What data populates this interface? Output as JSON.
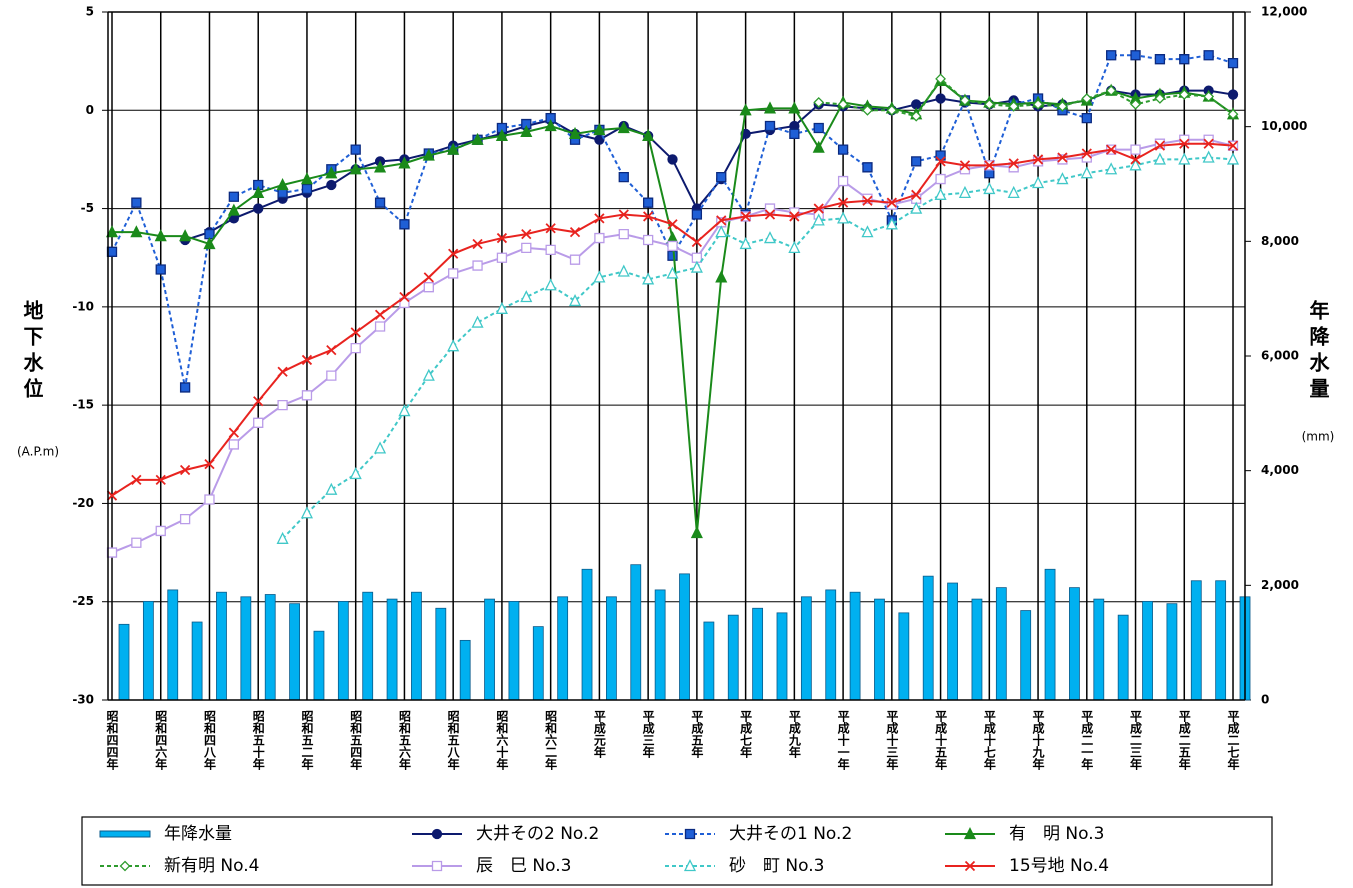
{
  "chart_data": {
    "type": "combo",
    "y_label": "地下水位",
    "y_unit": "(A.P.m)",
    "y2_label": "年降水量",
    "y2_unit": "(mm)",
    "categories": [
      "昭和四四年",
      null,
      "昭和四六年",
      null,
      "昭和四八年",
      null,
      "昭和五十年",
      null,
      "昭和五二年",
      null,
      "昭和五四年",
      null,
      "昭和五六年",
      null,
      "昭和五八年",
      null,
      "昭和六十年",
      null,
      "昭和六二年",
      null,
      "平成元年",
      null,
      "平成三年",
      null,
      "平成五年",
      null,
      "平成七年",
      null,
      "平成九年",
      null,
      "平成十一年",
      null,
      "平成十三年",
      null,
      "平成十五年",
      null,
      "平成十七年",
      null,
      "平成十九年",
      null,
      "平成二一年",
      null,
      "平成二三年",
      null,
      "平成二五年",
      null,
      "平成二七年"
    ],
    "ylim": [
      -30,
      5
    ],
    "yticks": [
      -30,
      -25,
      -20,
      -15,
      -10,
      -5,
      0,
      5
    ],
    "y2lim": [
      0,
      12000
    ],
    "y2ticks": [
      0,
      {
        "value": 2000,
        "label": "2,000"
      },
      {
        "value": 4000,
        "label": "4,000"
      },
      {
        "value": 6000,
        "label": "6,000"
      },
      {
        "value": 8000,
        "label": "8,000"
      },
      {
        "value": 10000,
        "label": "10,000"
      },
      {
        "value": 12000,
        "label": "12,000"
      }
    ],
    "grid": true,
    "series": [
      {
        "name": "年降水量",
        "kind": "bar",
        "axis": "y2",
        "color": "#00b0f0",
        "values": [
          1320,
          1720,
          1920,
          1360,
          1880,
          1800,
          1840,
          1680,
          1200,
          1720,
          1880,
          1760,
          1880,
          1600,
          1040,
          1760,
          1720,
          1280,
          1800,
          2280,
          1800,
          2360,
          1920,
          2200,
          1360,
          1480,
          1600,
          1520,
          1800,
          1920,
          1880,
          1760,
          1520,
          2160,
          2040,
          1760,
          1960,
          1560,
          2280,
          1960,
          1760,
          1480,
          1720,
          1680,
          2080,
          2080,
          1800
        ]
      },
      {
        "name": "大井その2 No.2",
        "kind": "line",
        "marker": "circle",
        "filled": true,
        "dashed": false,
        "color": "#0d1a6e",
        "values": [
          null,
          null,
          null,
          -6.6,
          -6.2,
          -5.5,
          -5.0,
          -4.5,
          -4.2,
          -3.8,
          -3.0,
          -2.6,
          -2.5,
          -2.2,
          -1.8,
          -1.5,
          -1.2,
          -0.8,
          -0.5,
          -1.2,
          -1.5,
          -0.8,
          -1.3,
          -2.5,
          -5.0,
          -3.5,
          -1.2,
          -1.0,
          -0.8,
          0.3,
          0.2,
          0.1,
          0,
          0.3,
          0.6,
          0.4,
          0.3,
          0.5,
          0.2,
          0.3,
          0.5,
          1.0,
          0.8,
          0.8,
          1.0,
          1.0,
          0.8
        ]
      },
      {
        "name": "大井その1 No.2",
        "kind": "line",
        "marker": "square",
        "filled": true,
        "dashed": true,
        "color": "#1f5fd6",
        "values": [
          -7.2,
          -4.7,
          -8.1,
          -14.1,
          -6.3,
          -4.4,
          -3.8,
          -4.2,
          -4.0,
          -3.0,
          -2.0,
          -4.7,
          -5.8,
          -2.2,
          -2.0,
          -1.5,
          -0.9,
          -0.7,
          -0.4,
          -1.5,
          -1.0,
          -3.4,
          -4.7,
          -7.4,
          -5.3,
          -3.4,
          -5.3,
          -0.8,
          -1.2,
          -0.9,
          -2.0,
          -2.9,
          -5.6,
          -2.6,
          -2.3,
          0.5,
          -3.2,
          0.3,
          0.6,
          0,
          -0.4,
          2.8,
          2.8,
          2.6,
          2.6,
          2.8,
          2.4
        ]
      },
      {
        "name": "有　明 No.3",
        "kind": "line",
        "marker": "triangle",
        "filled": true,
        "dashed": false,
        "color": "#1a8a1a",
        "values": [
          -6.2,
          -6.2,
          -6.4,
          -6.4,
          -6.8,
          -5.1,
          -4.2,
          -3.8,
          -3.5,
          -3.2,
          -3.0,
          -2.9,
          -2.7,
          -2.3,
          -2.0,
          -1.5,
          -1.3,
          -1.1,
          -0.8,
          -1.2,
          -1.0,
          -0.9,
          -1.3,
          -6.5,
          -21.5,
          -8.5,
          0,
          0.1,
          0.1,
          -1.9,
          0.4,
          0.2,
          0.1,
          -0.2,
          1.5,
          0.5,
          0.4,
          0.3,
          0.4,
          0.3,
          0.5,
          1.0,
          0.6,
          0.8,
          0.9,
          0.7,
          -0.2
        ]
      },
      {
        "name": "新有明 No.4",
        "kind": "line",
        "marker": "diamond",
        "filled": false,
        "dashed": true,
        "color": "#2e9b2e",
        "values": [
          null,
          null,
          null,
          null,
          null,
          null,
          null,
          null,
          null,
          null,
          null,
          null,
          null,
          null,
          null,
          null,
          null,
          null,
          null,
          null,
          null,
          null,
          null,
          null,
          null,
          null,
          null,
          null,
          null,
          0.4,
          0.3,
          0,
          0,
          -0.3,
          1.6,
          0.5,
          0.3,
          0.2,
          0.3,
          0.2,
          0.6,
          1.0,
          0.3,
          0.6,
          0.8,
          0.7,
          -0.2
        ]
      },
      {
        "name": "辰　巳 No.3",
        "kind": "line",
        "marker": "square",
        "filled": false,
        "dashed": false,
        "color": "#b99be8",
        "values": [
          -22.5,
          -22.0,
          -21.4,
          -20.8,
          -19.8,
          -17.0,
          -15.9,
          -15.0,
          -14.5,
          -13.5,
          -12.1,
          -11.0,
          -9.8,
          -9.0,
          -8.3,
          -7.9,
          -7.5,
          -7.0,
          -7.1,
          -7.6,
          -6.5,
          -6.3,
          -6.6,
          -6.9,
          -7.5,
          -5.7,
          -5.4,
          -5.0,
          -5.2,
          -5.3,
          -3.6,
          -4.5,
          -4.8,
          -4.5,
          -3.5,
          -3.0,
          -2.8,
          -2.9,
          -2.6,
          -2.5,
          -2.4,
          -2.0,
          -2.0,
          -1.7,
          -1.5,
          -1.5,
          -1.8
        ]
      },
      {
        "name": "砂　町 No.3",
        "kind": "line",
        "marker": "triangle",
        "filled": false,
        "dashed": true,
        "color": "#40c8c8",
        "values": [
          null,
          null,
          null,
          null,
          null,
          null,
          null,
          -21.8,
          -20.5,
          -19.3,
          -18.5,
          -17.2,
          -15.3,
          -13.5,
          -12.0,
          -10.8,
          -10.1,
          -9.5,
          -8.9,
          -9.7,
          -8.5,
          -8.2,
          -8.6,
          -8.3,
          -8.0,
          -6.2,
          -6.8,
          -6.5,
          -7.0,
          -5.6,
          -5.5,
          -6.2,
          -5.8,
          -5.0,
          -4.3,
          -4.2,
          -4.0,
          -4.2,
          -3.7,
          -3.5,
          -3.2,
          -3.0,
          -2.8,
          -2.5,
          -2.5,
          -2.4,
          -2.5
        ]
      },
      {
        "name": "15号地 No.4",
        "kind": "line",
        "marker": "cross",
        "filled": false,
        "dashed": false,
        "color": "#e8231f",
        "values": [
          -19.6,
          -18.8,
          -18.8,
          -18.3,
          -18.0,
          -16.4,
          -14.8,
          -13.3,
          -12.7,
          -12.2,
          -11.3,
          -10.4,
          -9.5,
          -8.5,
          -7.3,
          -6.8,
          -6.5,
          -6.3,
          -6.0,
          -6.2,
          -5.5,
          -5.3,
          -5.4,
          -5.8,
          -6.7,
          -5.6,
          -5.4,
          -5.3,
          -5.4,
          -5.0,
          -4.7,
          -4.6,
          -4.7,
          -4.3,
          -2.6,
          -2.8,
          -2.8,
          -2.7,
          -2.5,
          -2.4,
          -2.2,
          -2.0,
          -2.5,
          -1.8,
          -1.7,
          -1.7,
          -1.8
        ]
      }
    ]
  }
}
